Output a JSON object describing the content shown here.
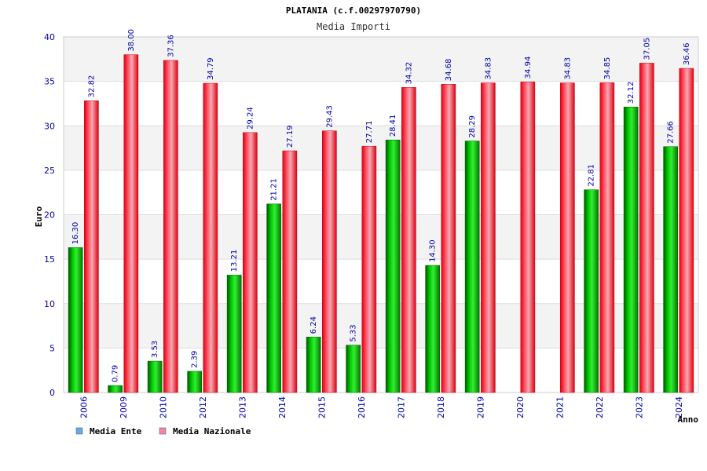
{
  "chart_data": {
    "type": "bar",
    "title": "PLATANIA (c.f.00297970790)",
    "subtitle": "Media Importi",
    "xlabel": "Anno",
    "ylabel": "Euro",
    "ylim": [
      0,
      40
    ],
    "yticks": [
      "0",
      "5",
      "10",
      "15",
      "20",
      "25",
      "30",
      "35",
      "40"
    ],
    "grid": true,
    "legend_position": "bottom-left",
    "categories": [
      "2006",
      "2009",
      "2010",
      "2012",
      "2013",
      "2014",
      "2015",
      "2016",
      "2017",
      "2018",
      "2019",
      "2020",
      "2021",
      "2022",
      "2023",
      "2024"
    ],
    "series": [
      {
        "name": "Media Ente",
        "color": "#00aa00",
        "legend_color": "#66aaee",
        "values": [
          16.3,
          0.79,
          3.53,
          2.39,
          13.21,
          21.21,
          6.24,
          5.33,
          28.41,
          14.3,
          28.29,
          null,
          null,
          22.81,
          32.12,
          27.66
        ],
        "labels": [
          "16.30",
          "0.79",
          "3.53",
          "2.39",
          "13.21",
          "21.21",
          "6.24",
          "5.33",
          "28.41",
          "14.30",
          "28.29",
          "",
          "",
          "22.81",
          "32.12",
          "27.66"
        ]
      },
      {
        "name": "Media Nazionale",
        "color": "#ee2233",
        "legend_color": "#ee88aa",
        "values": [
          32.82,
          38.0,
          37.36,
          34.79,
          29.24,
          27.19,
          29.43,
          27.71,
          34.32,
          34.68,
          34.83,
          34.94,
          34.83,
          34.85,
          37.05,
          36.46
        ],
        "labels": [
          "32.82",
          "38.00",
          "37.36",
          "34.79",
          "29.24",
          "27.19",
          "29.43",
          "27.71",
          "34.32",
          "34.68",
          "34.83",
          "34.94",
          "34.83",
          "34.85",
          "37.05",
          "36.46"
        ]
      }
    ]
  }
}
